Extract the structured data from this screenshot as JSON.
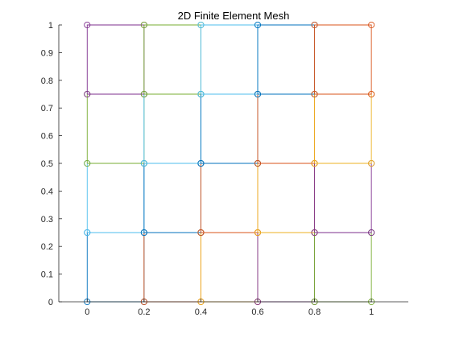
{
  "chart_data": {
    "type": "line",
    "title": "2D Finite Element Mesh",
    "xlabel": "",
    "ylabel": "",
    "xlim": [
      -0.1,
      1.13
    ],
    "ylim": [
      0,
      1
    ],
    "xticks": [
      0,
      0.2,
      0.4,
      0.6,
      0.8,
      1
    ],
    "xtick_labels": [
      "0",
      "0.2",
      "0.4",
      "0.6",
      "0.8",
      "1"
    ],
    "yticks": [
      0,
      0.1,
      0.2,
      0.3,
      0.4,
      0.5,
      0.6,
      0.7,
      0.8,
      0.9,
      1
    ],
    "ytick_labels": [
      "0",
      "0.1",
      "0.2",
      "0.3",
      "0.4",
      "0.5",
      "0.6",
      "0.7",
      "0.8",
      "0.9",
      "1"
    ],
    "grid": false,
    "box": false,
    "marker": "o",
    "palette": [
      "#0072BD",
      "#D95319",
      "#EDB120",
      "#7E2F8E",
      "#77AC30",
      "#4DBEEE"
    ],
    "nodes_x": [
      0,
      0.2,
      0.4,
      0.6,
      0.8,
      1
    ],
    "nodes_y": [
      0,
      0.25,
      0.5,
      0.75,
      1
    ],
    "series": [
      {
        "x": [
          0,
          0.2,
          0.2,
          0,
          0
        ],
        "y": [
          0,
          0,
          0.25,
          0.25,
          0
        ]
      },
      {
        "x": [
          0.2,
          0.4,
          0.4,
          0.2,
          0.2
        ],
        "y": [
          0,
          0,
          0.25,
          0.25,
          0
        ]
      },
      {
        "x": [
          0.4,
          0.6,
          0.6,
          0.4,
          0.4
        ],
        "y": [
          0,
          0,
          0.25,
          0.25,
          0
        ]
      },
      {
        "x": [
          0.6,
          0.8,
          0.8,
          0.6,
          0.6
        ],
        "y": [
          0,
          0,
          0.25,
          0.25,
          0
        ]
      },
      {
        "x": [
          0.8,
          1,
          1,
          0.8,
          0.8
        ],
        "y": [
          0,
          0,
          0.25,
          0.25,
          0
        ]
      },
      {
        "x": [
          0,
          0.2,
          0.2,
          0,
          0
        ],
        "y": [
          0.25,
          0.25,
          0.5,
          0.5,
          0.25
        ]
      },
      {
        "x": [
          0.2,
          0.4,
          0.4,
          0.2,
          0.2
        ],
        "y": [
          0.25,
          0.25,
          0.5,
          0.5,
          0.25
        ]
      },
      {
        "x": [
          0.4,
          0.6,
          0.6,
          0.4,
          0.4
        ],
        "y": [
          0.25,
          0.25,
          0.5,
          0.5,
          0.25
        ]
      },
      {
        "x": [
          0.6,
          0.8,
          0.8,
          0.6,
          0.6
        ],
        "y": [
          0.25,
          0.25,
          0.5,
          0.5,
          0.25
        ]
      },
      {
        "x": [
          0.8,
          1,
          1,
          0.8,
          0.8
        ],
        "y": [
          0.25,
          0.25,
          0.5,
          0.5,
          0.25
        ]
      },
      {
        "x": [
          0,
          0.2,
          0.2,
          0,
          0
        ],
        "y": [
          0.5,
          0.5,
          0.75,
          0.75,
          0.5
        ]
      },
      {
        "x": [
          0.2,
          0.4,
          0.4,
          0.2,
          0.2
        ],
        "y": [
          0.5,
          0.5,
          0.75,
          0.75,
          0.5
        ]
      },
      {
        "x": [
          0.4,
          0.6,
          0.6,
          0.4,
          0.4
        ],
        "y": [
          0.5,
          0.5,
          0.75,
          0.75,
          0.5
        ]
      },
      {
        "x": [
          0.6,
          0.8,
          0.8,
          0.6,
          0.6
        ],
        "y": [
          0.5,
          0.5,
          0.75,
          0.75,
          0.5
        ]
      },
      {
        "x": [
          0.8,
          1,
          1,
          0.8,
          0.8
        ],
        "y": [
          0.5,
          0.5,
          0.75,
          0.75,
          0.5
        ]
      },
      {
        "x": [
          0,
          0.2,
          0.2,
          0,
          0
        ],
        "y": [
          0.75,
          0.75,
          1,
          1,
          0.75
        ]
      },
      {
        "x": [
          0.2,
          0.4,
          0.4,
          0.2,
          0.2
        ],
        "y": [
          0.75,
          0.75,
          1,
          1,
          0.75
        ]
      },
      {
        "x": [
          0.4,
          0.6,
          0.6,
          0.4,
          0.4
        ],
        "y": [
          0.75,
          0.75,
          1,
          1,
          0.75
        ]
      },
      {
        "x": [
          0.6,
          0.8,
          0.8,
          0.6,
          0.6
        ],
        "y": [
          0.75,
          0.75,
          1,
          1,
          0.75
        ]
      },
      {
        "x": [
          0.8,
          1,
          1,
          0.8,
          0.8
        ],
        "y": [
          0.75,
          0.75,
          1,
          1,
          0.75
        ]
      }
    ]
  }
}
